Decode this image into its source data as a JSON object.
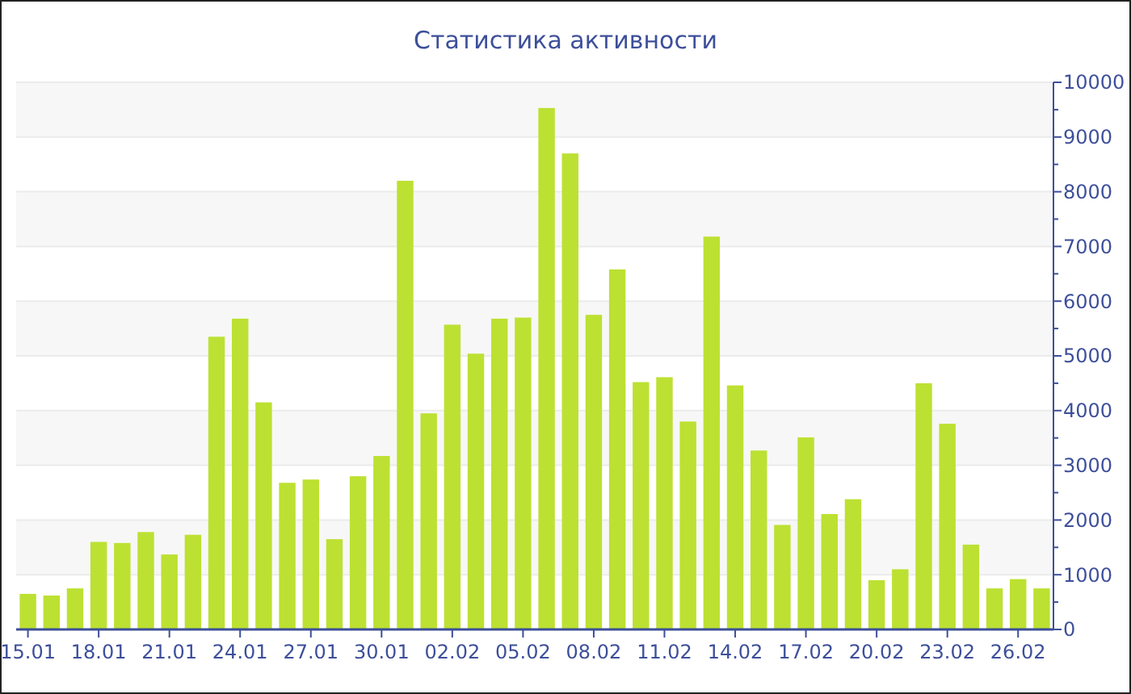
{
  "chart_data": {
    "type": "bar",
    "title": "Статистика активности",
    "categories": [
      "15.01",
      null,
      null,
      "18.01",
      null,
      null,
      "21.01",
      null,
      null,
      "24.01",
      null,
      null,
      "27.01",
      null,
      null,
      "30.01",
      null,
      null,
      "02.02",
      null,
      null,
      "05.02",
      null,
      null,
      "08.02",
      null,
      null,
      "11.02",
      null,
      null,
      "14.02",
      null,
      null,
      "17.02",
      null,
      null,
      "20.02",
      null,
      null,
      "23.02",
      null,
      null,
      "26.02",
      null
    ],
    "values": [
      650,
      620,
      750,
      1600,
      1580,
      1780,
      1370,
      1730,
      5350,
      5680,
      4150,
      2680,
      2740,
      1650,
      2800,
      3170,
      8200,
      3950,
      5570,
      5040,
      5680,
      5700,
      9530,
      8700,
      5750,
      6580,
      4520,
      4610,
      3800,
      7180,
      4460,
      3270,
      1910,
      3510,
      2110,
      2380,
      900,
      1100,
      4500,
      3760,
      1550,
      750,
      920,
      750
    ],
    "color": "#bce132",
    "ylim": [
      0,
      10000
    ],
    "yticks": [
      0,
      {
        "value": 500,
        "label": null
      },
      1000,
      {
        "value": 1500,
        "label": null
      },
      2000,
      {
        "value": 2500,
        "label": null
      },
      3000,
      {
        "value": 3500,
        "label": null
      },
      4000,
      {
        "value": 4500,
        "label": null
      },
      5000,
      {
        "value": 5500,
        "label": null
      },
      6000,
      {
        "value": 6500,
        "label": null
      },
      7000,
      {
        "value": 7500,
        "label": null
      },
      8000,
      {
        "value": 8500,
        "label": null
      },
      9000,
      {
        "value": 9500,
        "label": null
      },
      10000
    ],
    "grid": "y"
  }
}
